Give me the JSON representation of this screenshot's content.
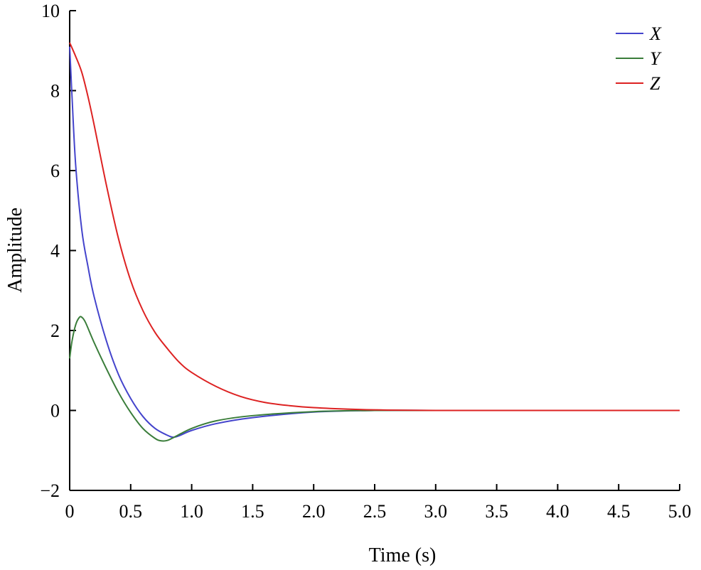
{
  "chart_data": {
    "type": "line",
    "title": "",
    "xlabel": "Time (s)",
    "ylabel": "Amplitude",
    "xlim": [
      0,
      5
    ],
    "ylim": [
      -2,
      10
    ],
    "xticks": [
      "0",
      "0.5",
      "1.0",
      "1.5",
      "2.0",
      "2.5",
      "3.0",
      "3.5",
      "4.0",
      "4.5",
      "5.0"
    ],
    "yticks": [
      "−2",
      "0",
      "2",
      "4",
      "6",
      "8",
      "10"
    ],
    "grid": false,
    "legend_position": "top-right",
    "series": [
      {
        "name": "X",
        "color": "#4444cc",
        "x": [
          0,
          0.02,
          0.05,
          0.1,
          0.15,
          0.2,
          0.3,
          0.4,
          0.5,
          0.6,
          0.7,
          0.8,
          0.85,
          0.9,
          1.0,
          1.2,
          1.5,
          2.0,
          2.5,
          3.0,
          3.5,
          4.0,
          4.5,
          5.0
        ],
        "y": [
          9.1,
          7.8,
          6.1,
          4.5,
          3.6,
          2.85,
          1.75,
          0.9,
          0.3,
          -0.15,
          -0.45,
          -0.62,
          -0.67,
          -0.63,
          -0.5,
          -0.33,
          -0.18,
          -0.04,
          0.0,
          0.0,
          0.0,
          0.0,
          0.0,
          0.0
        ]
      },
      {
        "name": "Y",
        "color": "#3a7d3a",
        "x": [
          0,
          0.02,
          0.05,
          0.08,
          0.1,
          0.13,
          0.2,
          0.3,
          0.4,
          0.5,
          0.6,
          0.7,
          0.75,
          0.8,
          0.85,
          1.0,
          1.2,
          1.5,
          2.0,
          2.5,
          3.0,
          3.5,
          4.0,
          4.5,
          5.0
        ],
        "y": [
          1.3,
          1.75,
          2.15,
          2.33,
          2.33,
          2.2,
          1.7,
          1.05,
          0.45,
          -0.05,
          -0.45,
          -0.7,
          -0.76,
          -0.75,
          -0.68,
          -0.45,
          -0.26,
          -0.13,
          -0.03,
          0.0,
          0.0,
          0.0,
          0.0,
          0.0,
          0.0
        ]
      },
      {
        "name": "Z",
        "color": "#dd2222",
        "x": [
          0,
          0.05,
          0.1,
          0.15,
          0.2,
          0.3,
          0.4,
          0.5,
          0.6,
          0.7,
          0.8,
          0.9,
          1.0,
          1.2,
          1.4,
          1.6,
          1.8,
          2.0,
          2.3,
          2.6,
          3.0,
          3.5,
          4.0,
          4.5,
          5.0
        ],
        "y": [
          9.2,
          8.85,
          8.45,
          7.85,
          7.15,
          5.65,
          4.3,
          3.25,
          2.5,
          1.95,
          1.55,
          1.2,
          0.95,
          0.6,
          0.35,
          0.2,
          0.12,
          0.07,
          0.03,
          0.01,
          0.0,
          0.0,
          0.0,
          0.0,
          0.0
        ]
      }
    ]
  }
}
